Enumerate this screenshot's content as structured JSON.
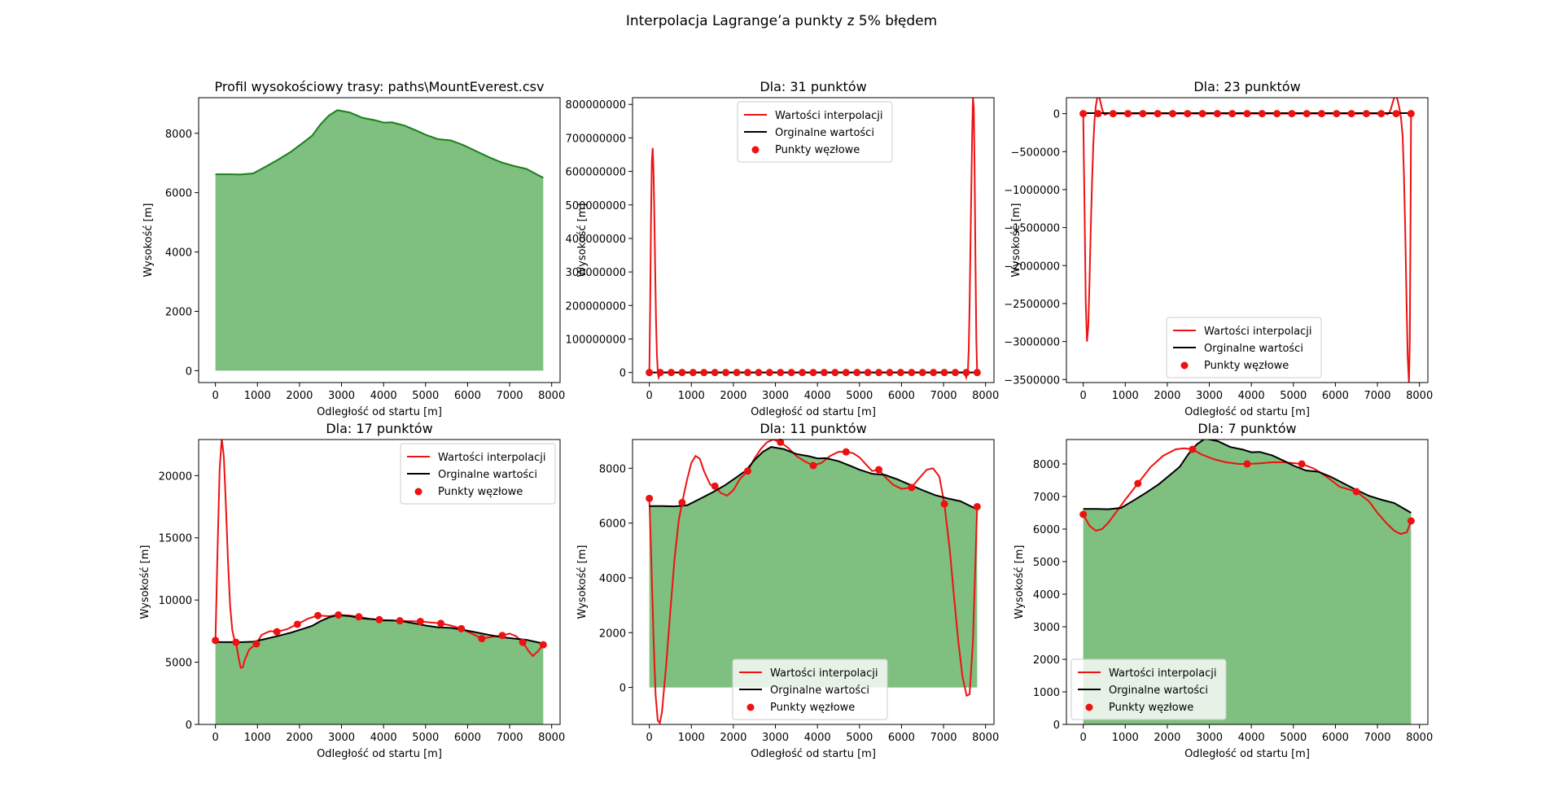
{
  "figure": {
    "suptitle": "Interpolacja Lagrange’a punkty z 5% błędem",
    "colors": {
      "fill": "#7fbf7f",
      "profile_line": "#1a7f1a",
      "interp": "#ee1111",
      "orig": "#000000",
      "nodes": "#ee1111",
      "axis": "#000000"
    }
  },
  "legend_labels": {
    "interp": "Wartości interpolacji",
    "orig": "Orginalne wartości",
    "nodes": "Punkty węzłowe"
  },
  "chart_data": [
    {
      "id": "profile",
      "type": "area",
      "title": "Profil wysokościowy trasy: paths\\MountEverest.csv",
      "xlabel": "Odległość od startu [m]",
      "ylabel": "Wysokość [m]",
      "xlim": [
        -400,
        8200
      ],
      "ylim": [
        -400,
        9200
      ],
      "xticks": [
        0,
        1000,
        2000,
        3000,
        4000,
        5000,
        6000,
        7000,
        8000
      ],
      "yticks": [
        0,
        2000,
        4000,
        6000,
        8000
      ],
      "legend": "none",
      "series": [
        {
          "x": [
            0,
            300,
            600,
            900,
            1200,
            1500,
            1800,
            2100,
            2300,
            2500,
            2700,
            2900,
            3200,
            3500,
            3800,
            4000,
            4200,
            4500,
            4800,
            5000,
            5300,
            5600,
            5900,
            6200,
            6500,
            6800,
            7100,
            7400,
            7600,
            7800
          ],
          "y": [
            6620,
            6620,
            6610,
            6650,
            6880,
            7120,
            7380,
            7700,
            7920,
            8300,
            8600,
            8780,
            8700,
            8520,
            8440,
            8360,
            8370,
            8260,
            8080,
            7950,
            7800,
            7760,
            7600,
            7400,
            7200,
            7020,
            6900,
            6800,
            6650,
            6500
          ]
        }
      ]
    },
    {
      "id": "n31",
      "type": "line",
      "title": "Dla: 31 punktów",
      "xlabel": "Odległość od startu [m]",
      "ylabel": "Wysokość [m]",
      "xlim": [
        -400,
        8200
      ],
      "ylim": [
        -30000000,
        820000000
      ],
      "xticks": [
        0,
        1000,
        2000,
        3000,
        4000,
        5000,
        6000,
        7000,
        8000
      ],
      "yticks": [
        0,
        100000000,
        200000000,
        300000000,
        400000000,
        500000000,
        600000000,
        700000000,
        800000000
      ],
      "legend": "upper center",
      "interp": {
        "x": [
          0,
          20,
          40,
          60,
          80,
          100,
          120,
          140,
          160,
          180,
          200,
          220,
          260,
          300,
          7500,
          7540,
          7580,
          7600,
          7620,
          7640,
          7660,
          7680,
          7700,
          7720,
          7740,
          7760,
          7780,
          7800
        ],
        "y": [
          0,
          200000000,
          460000000,
          630000000,
          670000000,
          600000000,
          460000000,
          300000000,
          150000000,
          55000000,
          5000000,
          -15000000,
          -5000000,
          0,
          0,
          -15000000,
          5000000,
          70000000,
          200000000,
          370000000,
          540000000,
          700000000,
          820000000,
          790000000,
          600000000,
          330000000,
          100000000,
          0
        ]
      },
      "orig": {
        "x": [
          0,
          7800
        ],
        "y": [
          6620,
          6500
        ]
      },
      "nodes": {
        "x": [
          0,
          260,
          520,
          780,
          1040,
          1300,
          1560,
          1820,
          2080,
          2340,
          2600,
          2860,
          3120,
          3380,
          3640,
          3900,
          4160,
          4420,
          4680,
          4940,
          5200,
          5460,
          5720,
          5980,
          6240,
          6500,
          6760,
          7020,
          7280,
          7540,
          7800
        ],
        "y": [
          0,
          0,
          0,
          0,
          0,
          0,
          0,
          0,
          0,
          0,
          0,
          0,
          0,
          0,
          0,
          0,
          0,
          0,
          0,
          0,
          0,
          0,
          0,
          0,
          0,
          0,
          0,
          0,
          0,
          0,
          0
        ]
      }
    },
    {
      "id": "n23",
      "type": "line",
      "title": "Dla: 23 punktów",
      "xlabel": "Odległość od startu [m]",
      "ylabel": "Wysokość [m]",
      "xlim": [
        -400,
        8200
      ],
      "ylim": [
        -3540000,
        210000
      ],
      "xticks": [
        0,
        1000,
        2000,
        3000,
        4000,
        5000,
        6000,
        7000,
        8000
      ],
      "yticks": [
        0,
        -500000,
        -1000000,
        -1500000,
        -2000000,
        -2500000,
        -3000000,
        -3500000
      ],
      "yticklabels": [
        "0",
        "−500000",
        "−1000000",
        "−1500000",
        "−2000000",
        "−2500000",
        "−3000000",
        "−3500000"
      ],
      "legend": "lower center",
      "interp": {
        "x": [
          0,
          30,
          60,
          90,
          120,
          150,
          180,
          210,
          240,
          270,
          300,
          330,
          360,
          390,
          420,
          450,
          480,
          510,
          540,
          580,
          620,
          700,
          7100,
          7180,
          7240,
          7280,
          7320,
          7360,
          7400,
          7440,
          7480,
          7520,
          7560,
          7600,
          7630,
          7660,
          7690,
          7720,
          7750,
          7770,
          7790,
          7800
        ],
        "y": [
          0,
          -1200000,
          -2500000,
          -3000000,
          -2800000,
          -2200000,
          -1500000,
          -900000,
          -400000,
          -80000,
          100000,
          200000,
          230000,
          200000,
          130000,
          60000,
          10000,
          -15000,
          -10000,
          0,
          5000,
          0,
          0,
          5000,
          -10000,
          10000,
          60000,
          140000,
          210000,
          230000,
          180000,
          80000,
          -50000,
          -300000,
          -800000,
          -1500000,
          -2400000,
          -3200000,
          -3550000,
          -3000000,
          -1200000,
          0
        ]
      },
      "orig": {
        "x": [
          0,
          7800
        ],
        "y": [
          6620,
          6500
        ]
      },
      "nodes": {
        "x": [
          0,
          354.5,
          709.1,
          1063.6,
          1418.2,
          1772.7,
          2127.3,
          2481.8,
          2836.4,
          3190.9,
          3545.5,
          3900,
          4254.5,
          4609.1,
          4963.6,
          5318.2,
          5672.7,
          6027.3,
          6381.8,
          6736.4,
          7090.9,
          7445.5,
          7800
        ],
        "y": [
          0,
          0,
          0,
          0,
          0,
          0,
          0,
          0,
          0,
          0,
          0,
          0,
          0,
          0,
          0,
          0,
          0,
          0,
          0,
          0,
          0,
          0,
          0
        ]
      }
    },
    {
      "id": "n17",
      "type": "line",
      "title": "Dla: 17 punktów",
      "xlabel": "Odległość od startu [m]",
      "ylabel": "Wysokość [m]",
      "xlim": [
        -400,
        8200
      ],
      "ylim": [
        0,
        22900
      ],
      "xticks": [
        0,
        1000,
        2000,
        3000,
        4000,
        5000,
        6000,
        7000,
        8000
      ],
      "yticks": [
        0,
        5000,
        10000,
        15000,
        20000
      ],
      "legend": "upper right",
      "interp": {
        "x": [
          0,
          50,
          100,
          150,
          200,
          250,
          300,
          350,
          400,
          450,
          487,
          550,
          600,
          650,
          700,
          800,
          975,
          1100,
          1300,
          1462,
          1700,
          1950,
          2200,
          2437,
          2700,
          2925,
          3200,
          3412,
          3650,
          3900,
          4150,
          4387,
          4600,
          4875,
          5100,
          5362,
          5600,
          5850,
          6100,
          6337,
          6600,
          6825,
          7000,
          7150,
          7312,
          7450,
          7550,
          7650,
          7800
        ],
        "y": [
          6650,
          14000,
          20500,
          23000,
          21500,
          17500,
          13000,
          9500,
          7600,
          6800,
          6620,
          5400,
          4550,
          4600,
          5200,
          6000,
          6500,
          7200,
          7500,
          7450,
          7650,
          8050,
          8500,
          8750,
          8700,
          8800,
          8750,
          8650,
          8500,
          8420,
          8350,
          8330,
          8300,
          8280,
          8200,
          8120,
          7950,
          7700,
          7300,
          6900,
          7050,
          7150,
          7300,
          7100,
          6600,
          5900,
          5500,
          5800,
          6400
        ]
      },
      "orig": {
        "x": [
          0,
          300,
          600,
          900,
          1200,
          1500,
          1800,
          2100,
          2300,
          2500,
          2700,
          2900,
          3200,
          3500,
          3800,
          4000,
          4200,
          4500,
          4800,
          5000,
          5300,
          5600,
          5900,
          6200,
          6500,
          6800,
          7100,
          7400,
          7600,
          7800
        ],
        "y": [
          6620,
          6620,
          6610,
          6650,
          6880,
          7120,
          7380,
          7700,
          7920,
          8300,
          8600,
          8780,
          8700,
          8520,
          8440,
          8360,
          8370,
          8260,
          8080,
          7950,
          7800,
          7760,
          7600,
          7400,
          7200,
          7020,
          6900,
          6800,
          6650,
          6500
        ]
      },
      "nodes": {
        "x": [
          0,
          487.5,
          975,
          1462.5,
          1950,
          2437.5,
          2925,
          3412.5,
          3900,
          4387.5,
          4875,
          5362.5,
          5850,
          6337.5,
          6825,
          7312.5,
          7800
        ],
        "y": [
          6750,
          6600,
          6480,
          7450,
          8050,
          8750,
          8800,
          8650,
          8420,
          8330,
          8280,
          8120,
          7700,
          6900,
          7150,
          6600,
          6400
        ]
      }
    },
    {
      "id": "n11",
      "type": "line",
      "title": "Dla: 11 punktów",
      "xlabel": "Odległość od startu [m]",
      "ylabel": "Wysokość [m]",
      "xlim": [
        -400,
        8200
      ],
      "ylim": [
        -1350,
        9050
      ],
      "xticks": [
        0,
        1000,
        2000,
        3000,
        4000,
        5000,
        6000,
        7000,
        8000
      ],
      "yticks": [
        0,
        2000,
        4000,
        6000,
        8000
      ],
      "legend": "lower center",
      "interp": {
        "x": [
          0,
          50,
          100,
          150,
          200,
          250,
          300,
          400,
          500,
          600,
          700,
          780,
          900,
          1000,
          1100,
          1200,
          1300,
          1450,
          1560,
          1700,
          1850,
          2000,
          2150,
          2340,
          2500,
          2650,
          2800,
          2950,
          3120,
          3300,
          3500,
          3700,
          3900,
          4100,
          4300,
          4500,
          4680,
          4850,
          5000,
          5150,
          5300,
          5460,
          5600,
          5800,
          6000,
          6240,
          6400,
          6600,
          6750,
          6900,
          7020,
          7150,
          7250,
          7350,
          7450,
          7550,
          7620,
          7700,
          7800
        ],
        "y": [
          6900,
          4500,
          1800,
          -300,
          -1200,
          -1300,
          -900,
          800,
          2800,
          4700,
          6100,
          6750,
          7600,
          8200,
          8450,
          8350,
          7900,
          7400,
          7350,
          7100,
          7000,
          7200,
          7600,
          7900,
          8350,
          8700,
          8950,
          9050,
          8950,
          8750,
          8450,
          8250,
          8100,
          8200,
          8450,
          8600,
          8600,
          8550,
          8400,
          8150,
          7900,
          7950,
          7700,
          7400,
          7250,
          7300,
          7600,
          7950,
          8000,
          7700,
          6700,
          5000,
          3300,
          1700,
          400,
          -300,
          -250,
          1700,
          6600
        ]
      },
      "orig": {
        "x": [
          0,
          300,
          600,
          900,
          1200,
          1500,
          1800,
          2100,
          2300,
          2500,
          2700,
          2900,
          3200,
          3500,
          3800,
          4000,
          4200,
          4500,
          4800,
          5000,
          5300,
          5600,
          5900,
          6200,
          6500,
          6800,
          7100,
          7400,
          7600,
          7800
        ],
        "y": [
          6620,
          6620,
          6610,
          6650,
          6880,
          7120,
          7380,
          7700,
          7920,
          8300,
          8600,
          8780,
          8700,
          8520,
          8440,
          8360,
          8370,
          8260,
          8080,
          7950,
          7800,
          7760,
          7600,
          7400,
          7200,
          7020,
          6900,
          6800,
          6650,
          6500
        ]
      },
      "nodes": {
        "x": [
          0,
          780,
          1560,
          2340,
          3120,
          3900,
          4680,
          5460,
          6240,
          7020,
          7800
        ],
        "y": [
          6900,
          6750,
          7350,
          7900,
          8950,
          8100,
          8600,
          7950,
          7300,
          6700,
          6600
        ]
      }
    },
    {
      "id": "n7",
      "type": "line",
      "title": "Dla: 7 punktów",
      "xlabel": "Odległość od startu [m]",
      "ylabel": "Wysokość [m]",
      "xlim": [
        -400,
        8200
      ],
      "ylim": [
        0,
        8750
      ],
      "xticks": [
        0,
        1000,
        2000,
        3000,
        4000,
        5000,
        6000,
        7000,
        8000
      ],
      "yticks": [
        0,
        1000,
        2000,
        3000,
        4000,
        5000,
        6000,
        7000,
        8000
      ],
      "legend": "lower left",
      "interp": {
        "x": [
          0,
          150,
          300,
          450,
          600,
          800,
          1000,
          1300,
          1600,
          1900,
          2200,
          2400,
          2600,
          2800,
          3100,
          3400,
          3700,
          3900,
          4200,
          4500,
          4800,
          5200,
          5500,
          5800,
          6100,
          6500,
          6800,
          7000,
          7200,
          7400,
          7550,
          7700,
          7800
        ],
        "y": [
          6450,
          6100,
          5950,
          6000,
          6200,
          6550,
          6900,
          7400,
          7900,
          8250,
          8450,
          8480,
          8450,
          8300,
          8150,
          8050,
          8000,
          8000,
          8020,
          8050,
          8050,
          8000,
          7850,
          7600,
          7300,
          7150,
          6850,
          6500,
          6200,
          5950,
          5850,
          5900,
          6250
        ]
      },
      "orig": {
        "x": [
          0,
          300,
          600,
          900,
          1200,
          1500,
          1800,
          2100,
          2300,
          2500,
          2700,
          2900,
          3200,
          3500,
          3800,
          4000,
          4200,
          4500,
          4800,
          5000,
          5300,
          5600,
          5900,
          6200,
          6500,
          6800,
          7100,
          7400,
          7600,
          7800
        ],
        "y": [
          6620,
          6620,
          6610,
          6650,
          6880,
          7120,
          7380,
          7700,
          7920,
          8300,
          8600,
          8780,
          8700,
          8520,
          8440,
          8360,
          8370,
          8260,
          8080,
          7950,
          7800,
          7760,
          7600,
          7400,
          7200,
          7020,
          6900,
          6800,
          6650,
          6500
        ]
      },
      "nodes": {
        "x": [
          0,
          1300,
          2600,
          3900,
          5200,
          6500,
          7800
        ],
        "y": [
          6450,
          7400,
          8450,
          8000,
          8000,
          7150,
          6250
        ]
      }
    }
  ]
}
